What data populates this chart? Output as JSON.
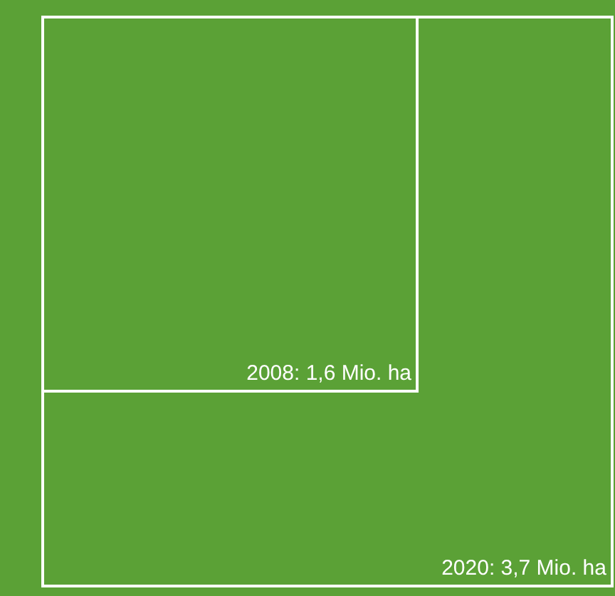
{
  "chart_data": {
    "type": "other",
    "categories": [
      null,
      null
    ],
    "values": [
      1.6,
      3.7
    ],
    "value_labels": [
      "2008: 1,6 Mio. ha",
      "2020: 3,7 Mio. ha"
    ],
    "color": "#5ba136"
  }
}
